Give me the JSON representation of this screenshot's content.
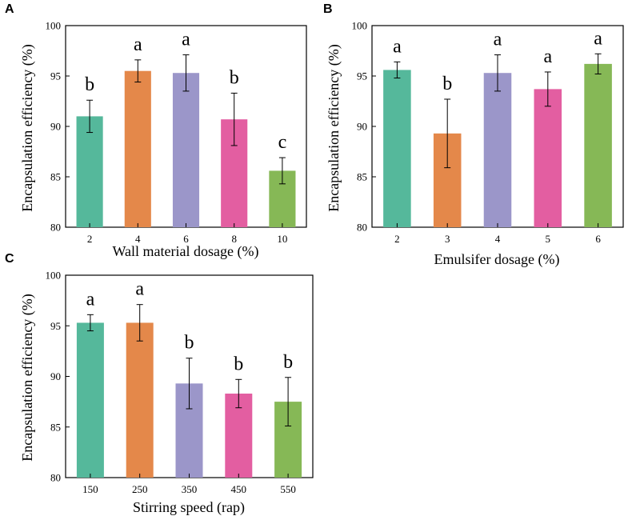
{
  "chart_data": [
    {
      "panel": "A",
      "type": "bar",
      "xlabel": "Wall material dosage (%)",
      "ylabel": "Encapsulation efficiency (%)",
      "ylim": [
        80,
        100
      ],
      "yticks": [
        "80",
        "85",
        "90",
        "95",
        "100"
      ],
      "categories": [
        "2",
        "4",
        "6",
        "8",
        "10"
      ],
      "values": [
        91.0,
        95.5,
        95.3,
        90.7,
        85.6
      ],
      "errors": [
        1.6,
        1.1,
        1.8,
        2.6,
        1.3
      ],
      "labels": [
        "b",
        "a",
        "a",
        "b",
        "c"
      ],
      "colors": [
        "#55b89b",
        "#e4884a",
        "#9b96c9",
        "#e35ea1",
        "#86b856"
      ]
    },
    {
      "panel": "B",
      "type": "bar",
      "xlabel": "Emulsifer dosage (%)",
      "ylabel": "Encapsulation efficiency (%)",
      "ylim": [
        80,
        100
      ],
      "yticks": [
        "80",
        "85",
        "90",
        "95",
        "100"
      ],
      "categories": [
        "2",
        "3",
        "4",
        "5",
        "6"
      ],
      "values": [
        95.6,
        89.3,
        95.3,
        93.7,
        96.2
      ],
      "errors": [
        0.8,
        3.4,
        1.8,
        1.7,
        1.0
      ],
      "labels": [
        "a",
        "b",
        "a",
        "a",
        "a"
      ],
      "colors": [
        "#55b89b",
        "#e4884a",
        "#9b96c9",
        "#e35ea1",
        "#86b856"
      ]
    },
    {
      "panel": "C",
      "type": "bar",
      "xlabel": "Stirring speed (rap)",
      "ylabel": "Encapsulation efficiency (%)",
      "ylim": [
        80,
        100
      ],
      "yticks": [
        "80",
        "85",
        "90",
        "95",
        "100"
      ],
      "categories": [
        "150",
        "250",
        "350",
        "450",
        "550"
      ],
      "values": [
        95.3,
        95.3,
        89.3,
        88.3,
        87.5
      ],
      "errors": [
        0.8,
        1.8,
        2.5,
        1.4,
        2.4
      ],
      "labels": [
        "a",
        "a",
        "b",
        "b",
        "b"
      ],
      "colors": [
        "#55b89b",
        "#e4884a",
        "#9b96c9",
        "#e35ea1",
        "#86b856"
      ]
    }
  ]
}
